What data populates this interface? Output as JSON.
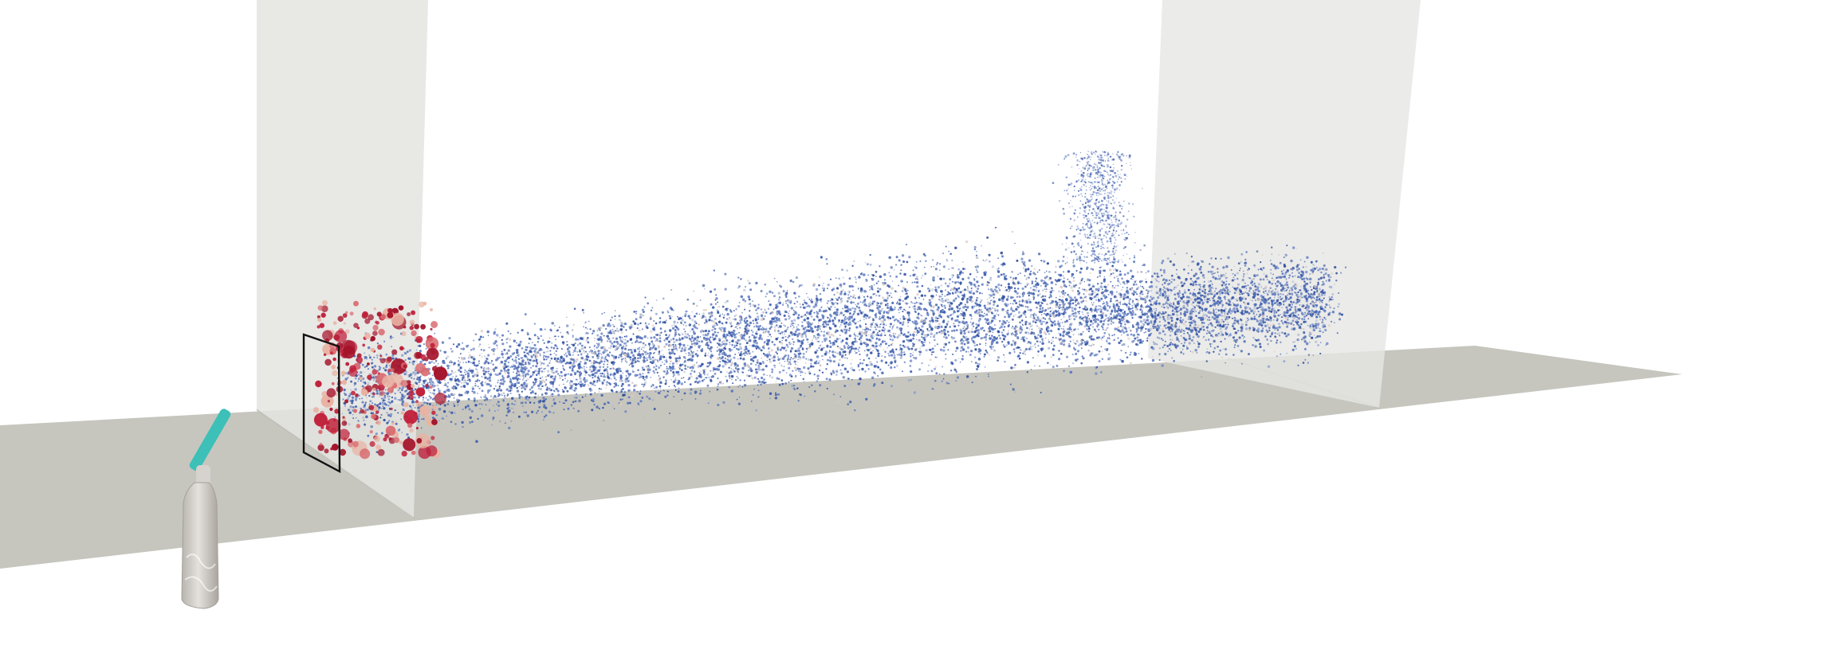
{
  "scene": {
    "background": "#ffffff",
    "floor_color": "#c6c6bf",
    "wall_color": "#e2e2df",
    "bottle_color": "#cfcbc6",
    "bottle_neck_color": "#3cc0b8",
    "frame_color": "#111111",
    "small_particle_colors": [
      "#2f4f9e",
      "#3b5db0",
      "#5a78c0",
      "#7f96cc",
      "#b8bfcf",
      "#d8c8bf"
    ],
    "large_particle_colors": [
      "#a5142b",
      "#c0203a",
      "#d96a6f",
      "#e9b3a3"
    ]
  }
}
